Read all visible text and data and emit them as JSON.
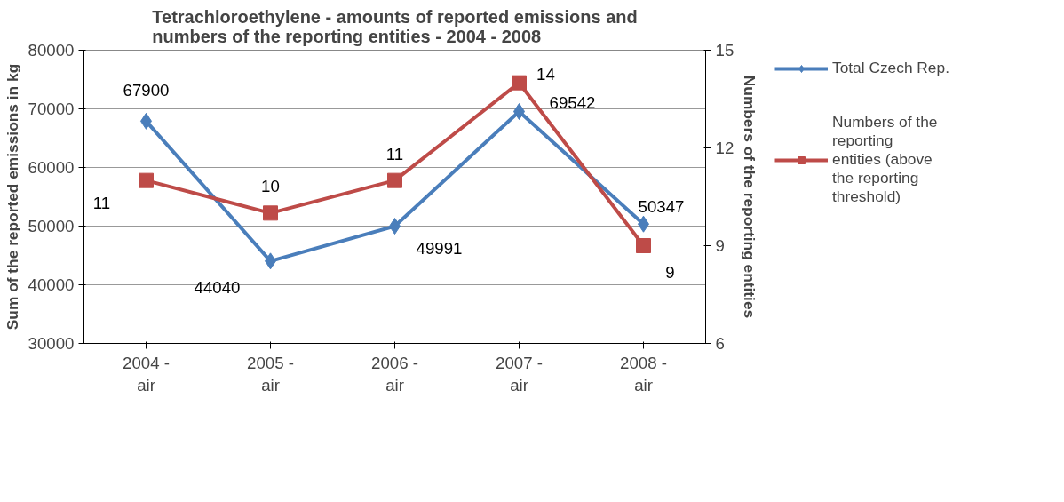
{
  "chart_data": {
    "type": "line",
    "title": "Tetrachloroethylene - amounts of reported emissions and numbers of the reporting entities - 2004 - 2008",
    "ylabel": "Sum of the reported emissions in kg",
    "y2label": "Numbers of the reporting entities",
    "categories": [
      "2004 - air",
      "2005 - air",
      "2006 - air",
      "2007 - air",
      "2008 - air"
    ],
    "series": [
      {
        "name": "Total Czech Rep.",
        "color": "#4a7ebb",
        "marker": "diamond",
        "values": [
          67900,
          44040,
          49991,
          69542,
          50347
        ]
      },
      {
        "name": "Numbers of the reporting entities (above the reporting threshold)",
        "color": "#be4b48",
        "marker": "square",
        "axis": "y2",
        "values": [
          11,
          10,
          11,
          14,
          9
        ]
      }
    ],
    "ylim": [
      30000,
      80000
    ],
    "yticks": [
      30000,
      40000,
      50000,
      60000,
      70000,
      80000
    ],
    "y2lim": [
      6,
      15
    ],
    "y2ticks": [
      6,
      9,
      12,
      15
    ],
    "grid": "y",
    "legend": "right",
    "data_labels": true,
    "line_style": "solid"
  }
}
